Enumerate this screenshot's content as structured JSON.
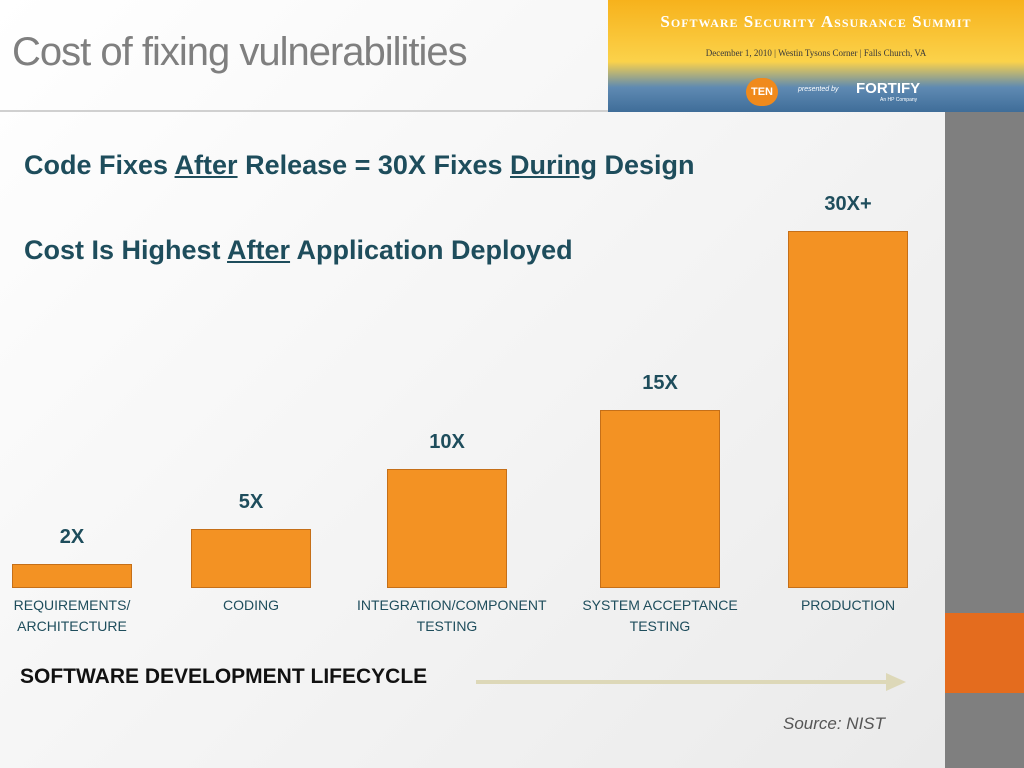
{
  "header": {
    "title": "Cost of fixing vulnerabilities"
  },
  "banner": {
    "event": "Software Security Assurance Summit",
    "details": "December 1, 2010 | Westin Tysons Corner | Falls Church, VA",
    "logo_left": "TEN",
    "presented_by": "presented by",
    "logo_right": "FORTIFY",
    "logo_right_sub": "An HP Company"
  },
  "headlines": [
    [
      {
        "text": "Code Fixes "
      },
      {
        "text": "After",
        "underline": true
      },
      {
        "text": " Release = 30X Fixes "
      },
      {
        "text": "During",
        "underline": true
      },
      {
        "text": " Design"
      }
    ],
    [
      {
        "text": "Cost Is Highest "
      },
      {
        "text": "After",
        "underline": true
      },
      {
        "text": " Application Deployed"
      }
    ]
  ],
  "chart_data": {
    "type": "bar",
    "categories": [
      "REQUIREMENTS/ ARCHITECTURE",
      "CODING",
      "INTEGRATION/COMPONENT TESTING",
      "SYSTEM ACCEPTANCE TESTING",
      "PRODUCTION"
    ],
    "values": [
      2,
      5,
      10,
      15,
      30
    ],
    "value_labels": [
      "2X",
      "5X",
      "10X",
      "15X",
      "30X+"
    ],
    "color": "#f39223",
    "xlabel": "SOFTWARE DEVELOPMENT LIFECYCLE",
    "source": "Source: NIST"
  }
}
